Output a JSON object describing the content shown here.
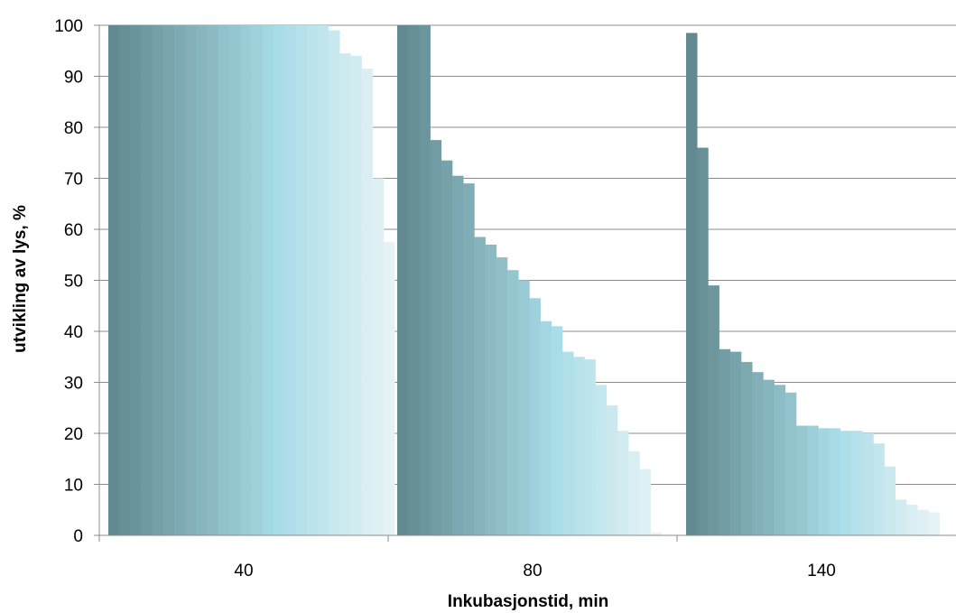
{
  "chart_data": {
    "type": "bar",
    "title": "",
    "xlabel": "Inkubasjonstid, min",
    "ylabel": "utvikling av lys, %",
    "ylim": [
      0,
      100
    ],
    "yticks": [
      0,
      10,
      20,
      30,
      40,
      50,
      60,
      70,
      80,
      90,
      100
    ],
    "grid": true,
    "legend": "none",
    "categories": [
      "40",
      "80",
      "140"
    ],
    "groups": [
      {
        "category": "40",
        "values": [
          100,
          100,
          100,
          100,
          100,
          100,
          100,
          100,
          100,
          100,
          100,
          100,
          100,
          100,
          100,
          100,
          100,
          100,
          100,
          100,
          99,
          94.5,
          94,
          91.5,
          70,
          57.5
        ]
      },
      {
        "category": "80",
        "values": [
          100,
          100,
          100,
          77.5,
          73.5,
          70.5,
          69,
          58.5,
          57,
          54.5,
          52,
          50,
          46.5,
          42,
          41,
          36,
          35,
          34.5,
          29.5,
          25.5,
          20.5,
          16.5,
          13,
          0.5
        ]
      },
      {
        "category": "140",
        "values": [
          98.5,
          76,
          49,
          36.5,
          36,
          34,
          32,
          30.5,
          29.5,
          28,
          21.5,
          21.5,
          21,
          21,
          20.5,
          20.5,
          20,
          18,
          13.5,
          7,
          6,
          5,
          4.5
        ]
      }
    ],
    "colors": {
      "dark": "#628a90",
      "mid": "#a8dce7",
      "light": "#e6f3f6"
    }
  }
}
